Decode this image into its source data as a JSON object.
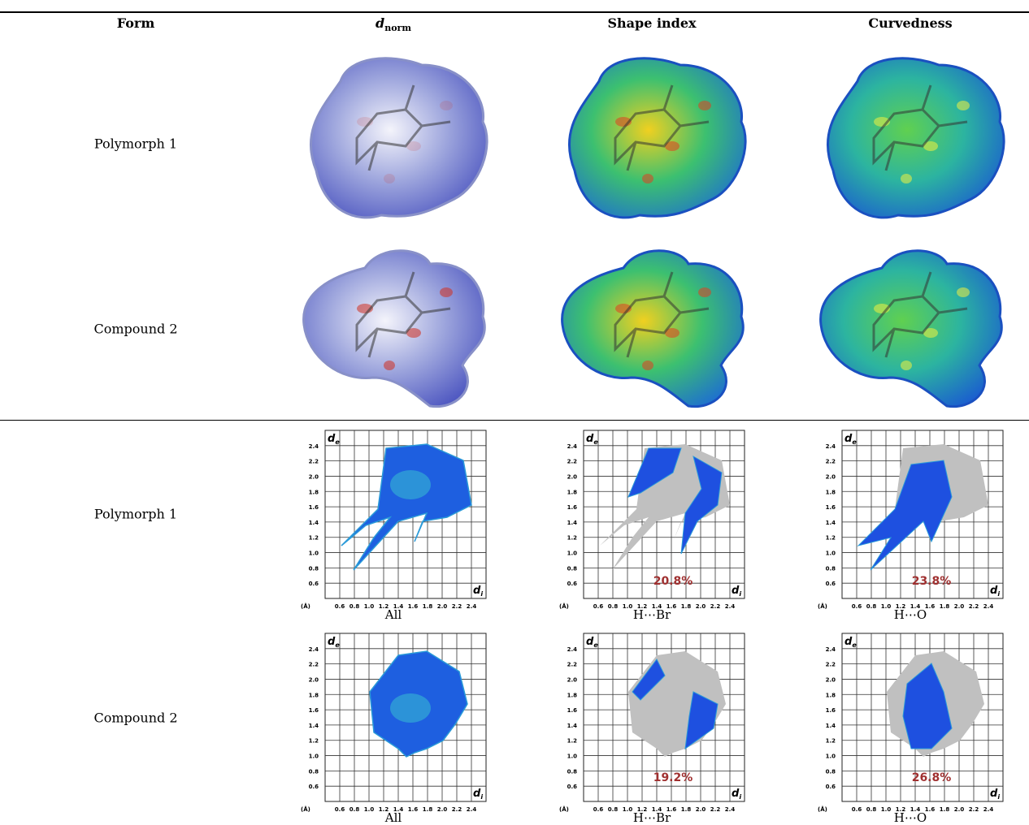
{
  "header": {
    "form": "Form",
    "dnorm": {
      "symbol": "d",
      "subscript": "norm"
    },
    "shape_index": "Shape index",
    "curvedness": "Curvedness"
  },
  "surface_rows": [
    {
      "label": "Polymorph 1"
    },
    {
      "label": "Compound 2"
    }
  ],
  "fingerprint_axes": {
    "unit": "(Å)",
    "ticks": [
      "0.6",
      "0.8",
      "1.0",
      "1.2",
      "1.4",
      "1.6",
      "1.8",
      "2.0",
      "2.2",
      "2.4"
    ],
    "y_label": {
      "symbol": "d",
      "subscript": "e"
    },
    "x_label": {
      "symbol": "d",
      "subscript": "i"
    }
  },
  "fingerprint_rows": [
    {
      "label": "Polymorph 1",
      "plots": [
        {
          "caption": "All"
        },
        {
          "caption": "H⋯Br",
          "percent": "20.8%"
        },
        {
          "caption": "H⋯O",
          "percent": "23.8%"
        }
      ]
    },
    {
      "label": "Compound 2",
      "plots": [
        {
          "caption": "All"
        },
        {
          "caption": "H⋯Br",
          "percent": "19.2%"
        },
        {
          "caption": "H⋯O",
          "percent": "26.8%"
        }
      ]
    }
  ]
}
